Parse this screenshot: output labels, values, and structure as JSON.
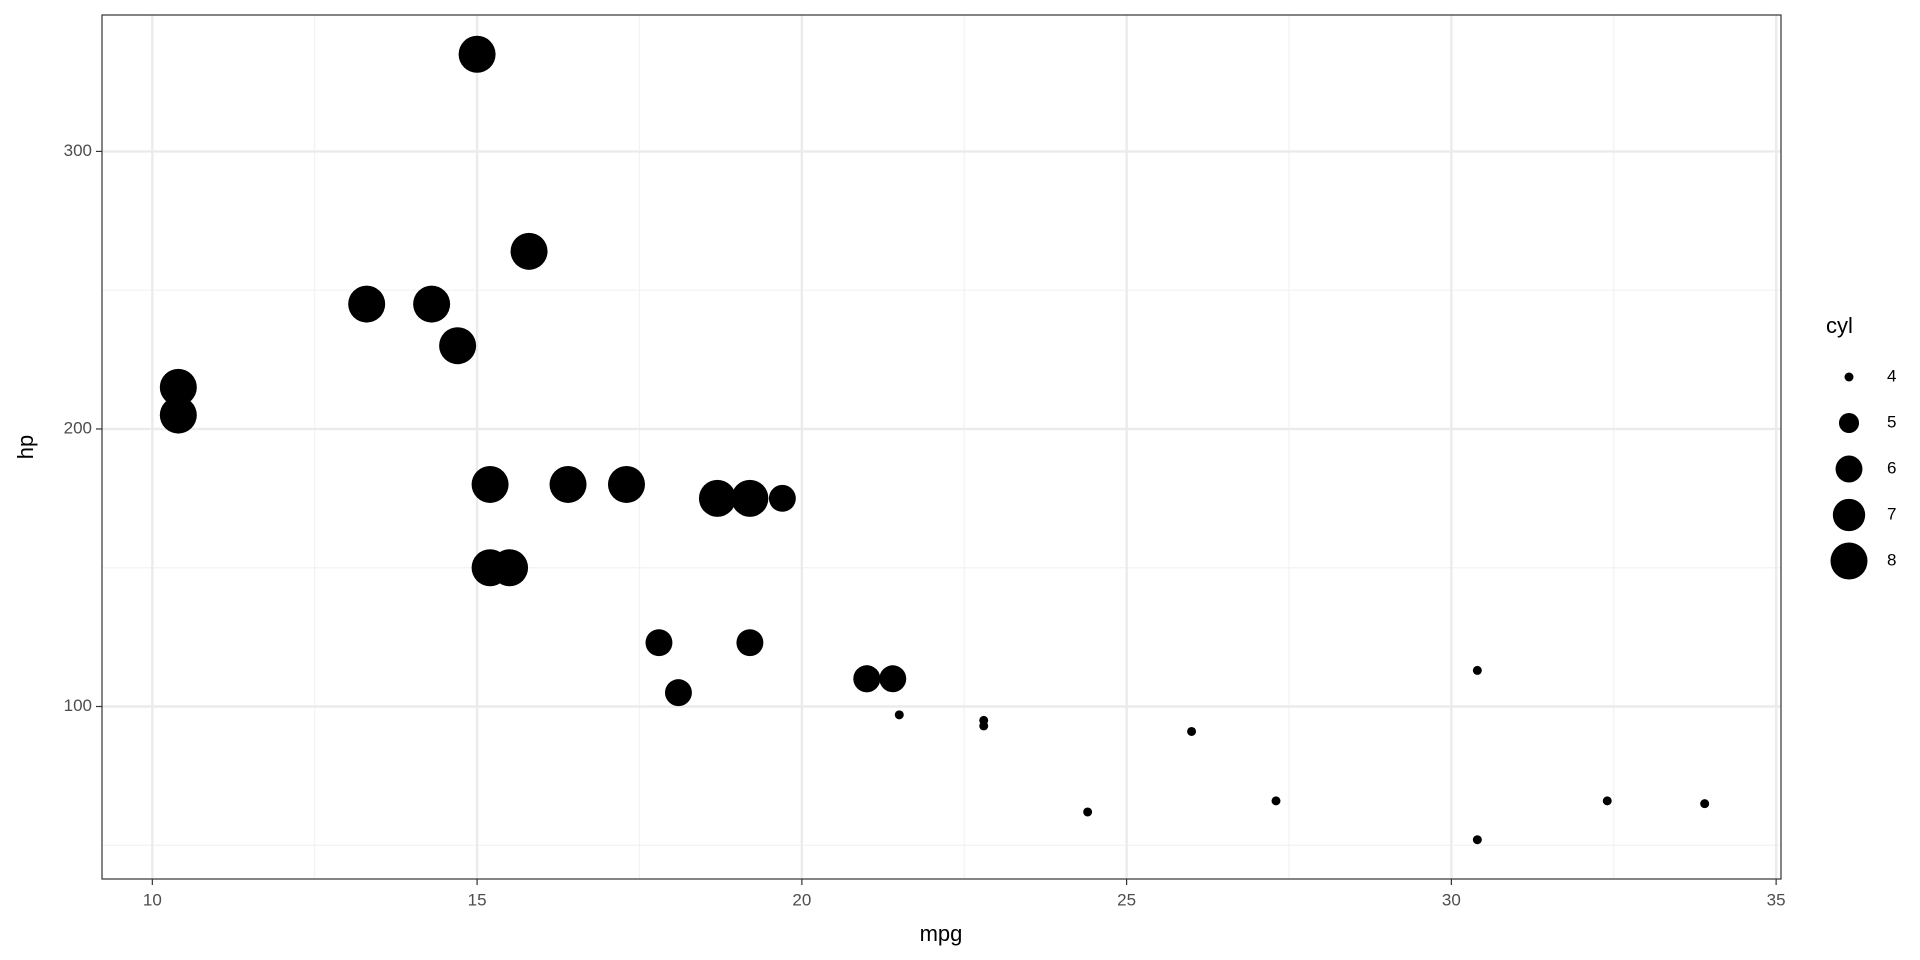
{
  "chart_data": {
    "type": "scatter",
    "x_label": "mpg",
    "y_label": "hp",
    "x": [
      21.0,
      21.0,
      22.8,
      21.4,
      18.7,
      18.1,
      14.3,
      24.4,
      22.8,
      19.2,
      17.8,
      16.4,
      17.3,
      15.2,
      10.4,
      10.4,
      14.7,
      32.4,
      30.4,
      33.9,
      21.5,
      15.5,
      15.2,
      13.3,
      19.2,
      27.3,
      26.0,
      30.4,
      15.8,
      19.7,
      15.0,
      21.4
    ],
    "values": [
      110,
      110,
      93,
      110,
      175,
      105,
      245,
      62,
      95,
      123,
      123,
      180,
      180,
      180,
      205,
      215,
      230,
      66,
      52,
      65,
      97,
      150,
      150,
      245,
      175,
      66,
      91,
      113,
      264,
      175,
      335,
      109
    ],
    "sizes": [
      6,
      6,
      4,
      6,
      8,
      6,
      8,
      4,
      4,
      6,
      6,
      8,
      8,
      8,
      8,
      8,
      8,
      4,
      4,
      4,
      4,
      8,
      8,
      8,
      8,
      4,
      4,
      4,
      8,
      6,
      8,
      4
    ],
    "color": "#000000",
    "xlim": [
      9.225,
      35.075
    ],
    "xticks": [
      10,
      15,
      20,
      25,
      30,
      35
    ],
    "xminor": [
      12.5,
      17.5,
      22.5,
      27.5,
      32.5
    ],
    "ylim": [
      37.85,
      349.15
    ],
    "yticks": [
      100,
      200,
      300
    ],
    "yminor": [
      50,
      150,
      250
    ],
    "grid": true,
    "size_legend": {
      "title": "cyl",
      "breaks": [
        4,
        5,
        6,
        7,
        8
      ]
    }
  }
}
